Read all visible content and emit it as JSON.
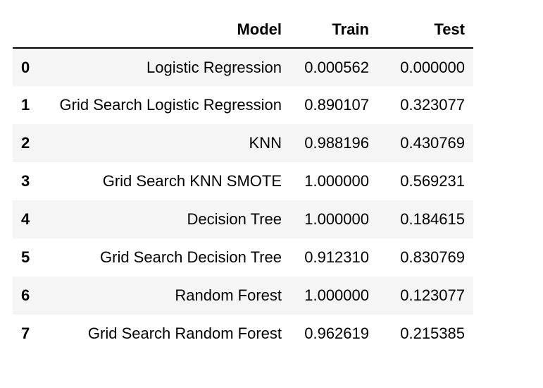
{
  "chart_data": {
    "type": "table",
    "columns": [
      "",
      "Model",
      "Train",
      "Test"
    ],
    "rows": [
      {
        "index": "0",
        "model": "Logistic Regression",
        "train": "0.000562",
        "test": "0.000000"
      },
      {
        "index": "1",
        "model": "Grid Search Logistic Regression",
        "train": "0.890107",
        "test": "0.323077"
      },
      {
        "index": "2",
        "model": "KNN",
        "train": "0.988196",
        "test": "0.430769"
      },
      {
        "index": "3",
        "model": "Grid Search KNN SMOTE",
        "train": "1.000000",
        "test": "0.569231"
      },
      {
        "index": "4",
        "model": "Decision Tree",
        "train": "1.000000",
        "test": "0.184615"
      },
      {
        "index": "5",
        "model": "Grid Search Decision Tree",
        "train": "0.912310",
        "test": "0.830769"
      },
      {
        "index": "6",
        "model": "Random Forest",
        "train": "1.000000",
        "test": "0.123077"
      },
      {
        "index": "7",
        "model": "Grid Search Random Forest",
        "train": "0.962619",
        "test": "0.215385"
      }
    ]
  },
  "colors": {
    "stripe": "#f5f5f5",
    "header_rule": "#000000",
    "text": "#000000"
  }
}
